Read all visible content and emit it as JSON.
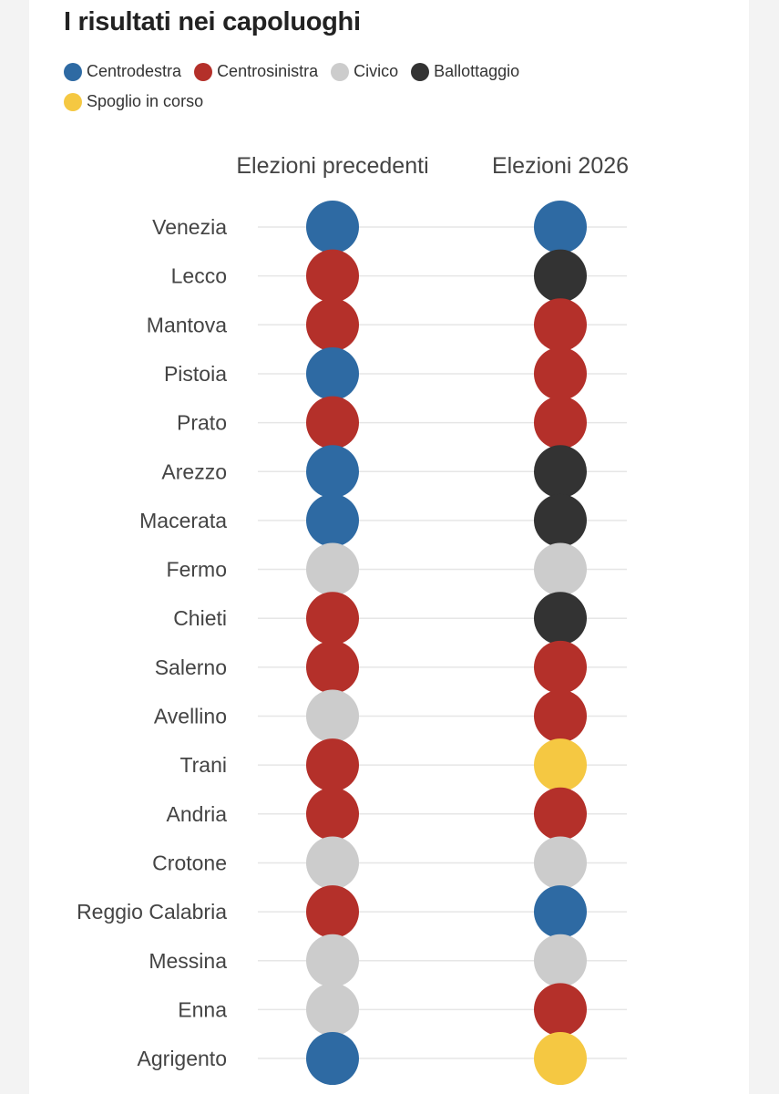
{
  "title": "I risultati nei capoluoghi",
  "colors": {
    "Centrodestra": "#2e6aa3",
    "Centrosinistra": "#b4302a",
    "Civico": "#cccccc",
    "Ballottaggio": "#333333",
    "Spoglio in corso": "#f5c842"
  },
  "chart_data": {
    "type": "table",
    "title": "I risultati nei capoluoghi",
    "legend": [
      "Centrodestra",
      "Centrosinistra",
      "Civico",
      "Ballottaggio",
      "Spoglio in corso"
    ],
    "legend_position": "top-left",
    "columns": [
      "Elezioni precedenti",
      "Elezioni 2026"
    ],
    "rows": [
      {
        "city": "Venezia",
        "values": [
          "Centrodestra",
          "Centrodestra"
        ]
      },
      {
        "city": "Lecco",
        "values": [
          "Centrosinistra",
          "Ballottaggio"
        ]
      },
      {
        "city": "Mantova",
        "values": [
          "Centrosinistra",
          "Centrosinistra"
        ]
      },
      {
        "city": "Pistoia",
        "values": [
          "Centrodestra",
          "Centrosinistra"
        ]
      },
      {
        "city": "Prato",
        "values": [
          "Centrosinistra",
          "Centrosinistra"
        ]
      },
      {
        "city": "Arezzo",
        "values": [
          "Centrodestra",
          "Ballottaggio"
        ]
      },
      {
        "city": "Macerata",
        "values": [
          "Centrodestra",
          "Ballottaggio"
        ]
      },
      {
        "city": "Fermo",
        "values": [
          "Civico",
          "Civico"
        ]
      },
      {
        "city": "Chieti",
        "values": [
          "Centrosinistra",
          "Ballottaggio"
        ]
      },
      {
        "city": "Salerno",
        "values": [
          "Centrosinistra",
          "Centrosinistra"
        ]
      },
      {
        "city": "Avellino",
        "values": [
          "Civico",
          "Centrosinistra"
        ]
      },
      {
        "city": "Trani",
        "values": [
          "Centrosinistra",
          "Spoglio in corso"
        ]
      },
      {
        "city": "Andria",
        "values": [
          "Centrosinistra",
          "Centrosinistra"
        ]
      },
      {
        "city": "Crotone",
        "values": [
          "Civico",
          "Civico"
        ]
      },
      {
        "city": "Reggio Calabria",
        "values": [
          "Centrosinistra",
          "Centrodestra"
        ]
      },
      {
        "city": "Messina",
        "values": [
          "Civico",
          "Civico"
        ]
      },
      {
        "city": "Enna",
        "values": [
          "Civico",
          "Centrosinistra"
        ]
      },
      {
        "city": "Agrigento",
        "values": [
          "Centrodestra",
          "Spoglio in corso"
        ]
      }
    ]
  }
}
